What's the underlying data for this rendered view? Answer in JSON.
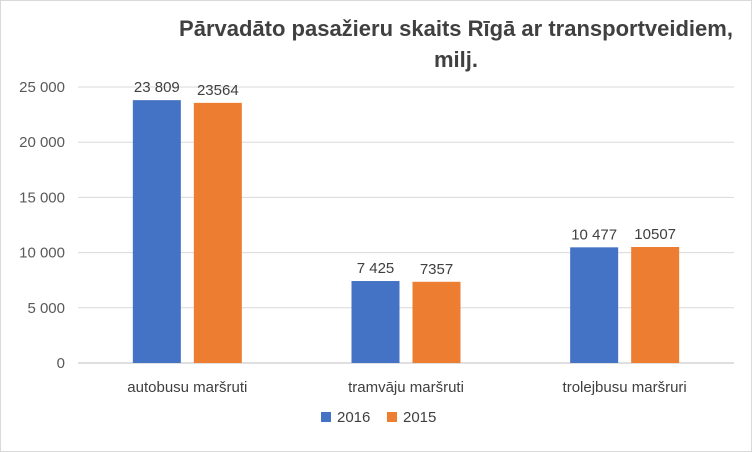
{
  "chart_data": {
    "type": "bar",
    "title": "Pārvadāto pasažieru skaits Rīgā ar transportveidiem, milj.",
    "title_lines": [
      "Pārvadāto pasažieru skaits Rīgā ar transportveidiem,",
      "milj."
    ],
    "categories": [
      "autobusu maršruti",
      "tramvāju maršruti",
      "trolejbusu maršruri"
    ],
    "series": [
      {
        "name": "2016",
        "values": [
          23809,
          7425,
          10477
        ],
        "labels": [
          "23 809",
          "7 425",
          "10 477"
        ],
        "color": "#4472c4"
      },
      {
        "name": "2015",
        "values": [
          23564,
          7357,
          10507
        ],
        "labels": [
          "23564",
          "7357",
          "10507"
        ],
        "color": "#ed7d31"
      }
    ],
    "ylim": [
      0,
      25000
    ],
    "yticks": [
      0,
      5000,
      10000,
      15000,
      20000,
      25000
    ],
    "ytick_labels": [
      "0",
      "5 000",
      "10 000",
      "15 000",
      "20 000",
      "25 000"
    ],
    "grid": true,
    "legend_position": "bottom",
    "xlabel": "",
    "ylabel": ""
  }
}
